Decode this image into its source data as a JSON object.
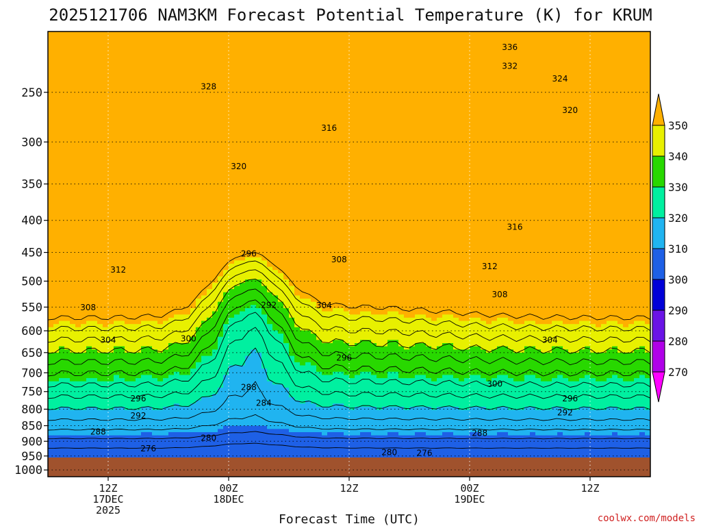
{
  "chart_data": {
    "type": "heatmap",
    "title": "2025121706 NAM3KM Forecast Potential Temperature (K) for KRUM",
    "xlabel": "Forecast Time (UTC)",
    "ylabel": "",
    "y_ticks": [
      "250",
      "300",
      "350",
      "400",
      "450",
      "500",
      "550",
      "600",
      "650",
      "700",
      "750",
      "800",
      "850",
      "900",
      "950",
      "1000"
    ],
    "x_ticks": [
      {
        "line1": "12Z",
        "line2": "17DEC",
        "line3": "2025",
        "hours": 6
      },
      {
        "line1": "00Z",
        "line2": "18DEC",
        "line3": "",
        "hours": 18
      },
      {
        "line1": "12Z",
        "line2": "",
        "line3": "",
        "hours": 30
      },
      {
        "line1": "00Z",
        "line2": "19DEC",
        "line3": "",
        "hours": 42
      },
      {
        "line1": "12Z",
        "line2": "",
        "line3": "",
        "hours": 54
      }
    ],
    "x_range_hours": [
      0,
      60
    ],
    "y_range_hpa": [
      200,
      1025
    ],
    "colorbar": {
      "levels": [
        270,
        280,
        290,
        300,
        310,
        320,
        330,
        340,
        350
      ],
      "colors": [
        "#ff00ff",
        "#b000e8",
        "#6a14e6",
        "#0000d8",
        "#1e60e6",
        "#20b4f0",
        "#00f0a0",
        "#28d800",
        "#e8f000",
        "#ffb000"
      ]
    },
    "contour_interval_K": 4,
    "contour_labels": [
      {
        "text": "336",
        "t": 46.0,
        "p": 212
      },
      {
        "text": "332",
        "t": 46.0,
        "p": 227
      },
      {
        "text": "328",
        "t": 16.0,
        "p": 245
      },
      {
        "text": "324",
        "t": 51.0,
        "p": 238
      },
      {
        "text": "320",
        "t": 52.0,
        "p": 267
      },
      {
        "text": "316",
        "t": 28.0,
        "p": 285
      },
      {
        "text": "320",
        "t": 19.0,
        "p": 328
      },
      {
        "text": "316",
        "t": 46.5,
        "p": 410
      },
      {
        "text": "312",
        "t": 7.0,
        "p": 480
      },
      {
        "text": "296",
        "t": 20.0,
        "p": 452
      },
      {
        "text": "308",
        "t": 29.0,
        "p": 462
      },
      {
        "text": "312",
        "t": 44.0,
        "p": 474
      },
      {
        "text": "308",
        "t": 4.0,
        "p": 551
      },
      {
        "text": "292",
        "t": 22.0,
        "p": 546
      },
      {
        "text": "304",
        "t": 27.5,
        "p": 547
      },
      {
        "text": "308",
        "t": 45.0,
        "p": 525
      },
      {
        "text": "304",
        "t": 6.0,
        "p": 621
      },
      {
        "text": "300",
        "t": 14.0,
        "p": 618
      },
      {
        "text": "296",
        "t": 29.5,
        "p": 663
      },
      {
        "text": "304",
        "t": 50.0,
        "p": 621
      },
      {
        "text": "300",
        "t": 44.5,
        "p": 729
      },
      {
        "text": "288",
        "t": 20.0,
        "p": 738
      },
      {
        "text": "296",
        "t": 9.0,
        "p": 770
      },
      {
        "text": "284",
        "t": 21.5,
        "p": 782
      },
      {
        "text": "296",
        "t": 52.0,
        "p": 770
      },
      {
        "text": "292",
        "t": 9.0,
        "p": 820
      },
      {
        "text": "292",
        "t": 51.5,
        "p": 810
      },
      {
        "text": "288",
        "t": 5.0,
        "p": 869
      },
      {
        "text": "280",
        "t": 16.0,
        "p": 889
      },
      {
        "text": "288",
        "t": 43.0,
        "p": 874
      },
      {
        "text": "276",
        "t": 10.0,
        "p": 925
      },
      {
        "text": "280",
        "t": 34.0,
        "p": 937
      },
      {
        "text": "276",
        "t": 37.5,
        "p": 940
      }
    ]
  },
  "credit": "coolwx.com/models"
}
